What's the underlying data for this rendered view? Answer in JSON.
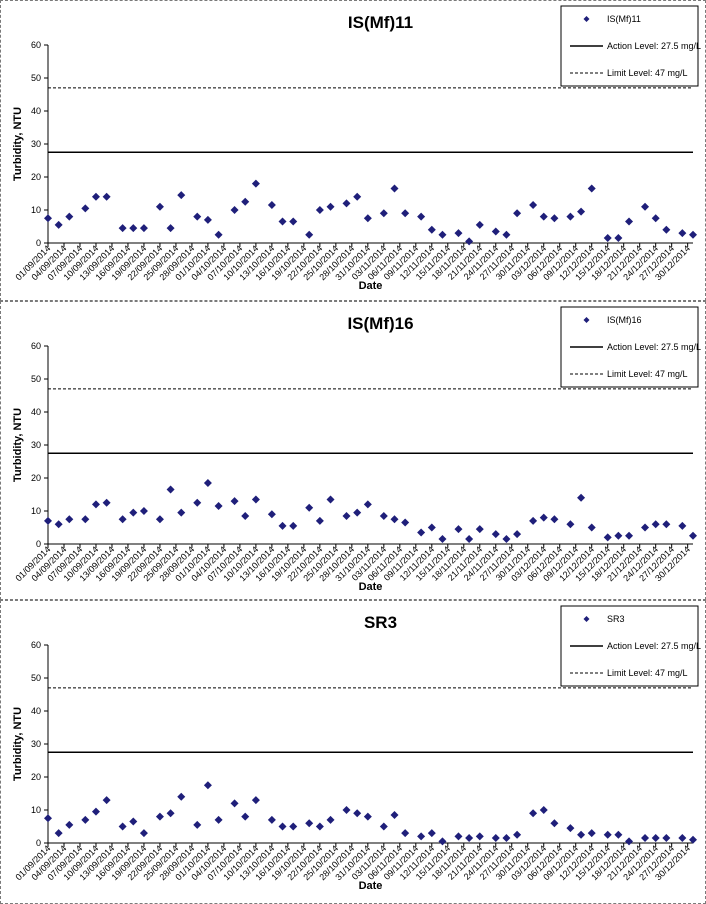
{
  "chart_data": [
    {
      "type": "scatter",
      "title": "IS(Mf)11",
      "xlabel": "Date",
      "ylabel": "Turbidity, NTU",
      "ylim": [
        0,
        60
      ],
      "yticks": [
        "0",
        "10",
        "20",
        "30",
        "40",
        "50",
        "60"
      ],
      "xlim": [
        "2014-09-01",
        "2014-12-31"
      ],
      "xticks": [
        "01/09/2014",
        "04/09/2014",
        "07/09/2014",
        "10/09/2014",
        "13/09/2014",
        "16/09/2014",
        "19/09/2014",
        "22/09/2014",
        "25/09/2014",
        "28/09/2014",
        "01/10/2014",
        "04/10/2014",
        "07/10/2014",
        "10/10/2014",
        "13/10/2014",
        "16/10/2014",
        "19/10/2014",
        "22/10/2014",
        "25/10/2014",
        "28/10/2014",
        "31/10/2014",
        "03/11/2014",
        "06/11/2014",
        "09/11/2014",
        "12/11/2014",
        "15/11/2014",
        "18/11/2014",
        "21/11/2014",
        "24/11/2014",
        "27/11/2014",
        "30/11/2014",
        "03/12/2014",
        "06/12/2014",
        "09/12/2014",
        "12/12/2014",
        "15/12/2014",
        "18/12/2014",
        "21/12/2014",
        "24/12/2014",
        "27/12/2014",
        "30/12/2014"
      ],
      "grid": false,
      "legend_position": "top-right",
      "series": [
        {
          "name": "IS(Mf)11",
          "marker": "diamond",
          "color": "#1f1f7a",
          "x": [
            "2014-09-01",
            "2014-09-03",
            "2014-09-05",
            "2014-09-08",
            "2014-09-10",
            "2014-09-12",
            "2014-09-15",
            "2014-09-17",
            "2014-09-19",
            "2014-09-22",
            "2014-09-24",
            "2014-09-26",
            "2014-09-29",
            "2014-10-01",
            "2014-10-03",
            "2014-10-06",
            "2014-10-08",
            "2014-10-10",
            "2014-10-13",
            "2014-10-15",
            "2014-10-17",
            "2014-10-20",
            "2014-10-22",
            "2014-10-24",
            "2014-10-27",
            "2014-10-29",
            "2014-10-31",
            "2014-11-03",
            "2014-11-05",
            "2014-11-07",
            "2014-11-10",
            "2014-11-12",
            "2014-11-14",
            "2014-11-17",
            "2014-11-19",
            "2014-11-21",
            "2014-11-24",
            "2014-11-26",
            "2014-11-28",
            "2014-12-01",
            "2014-12-03",
            "2014-12-05",
            "2014-12-08",
            "2014-12-10",
            "2014-12-12",
            "2014-12-15",
            "2014-12-17",
            "2014-12-19",
            "2014-12-22",
            "2014-12-24",
            "2014-12-26",
            "2014-12-29",
            "2014-12-31"
          ],
          "y": [
            7.5,
            5.5,
            8,
            10.5,
            14,
            14,
            4.5,
            4.5,
            4.5,
            11,
            4.5,
            14.5,
            8,
            7,
            2.5,
            10,
            12.5,
            18,
            11.5,
            6.5,
            6.5,
            2.5,
            10,
            11,
            12,
            14,
            7.5,
            9,
            16.5,
            9,
            8,
            4,
            2.5,
            3,
            0.5,
            5.5,
            3.5,
            2.5,
            9,
            11.5,
            8,
            7.5,
            8,
            9.5,
            16.5,
            1.5,
            1.5,
            6.5,
            11,
            7.5,
            4,
            3,
            2.5
          ]
        },
        {
          "name": "Action Level: 27.5 mg/L",
          "type": "hline",
          "y": 27.5,
          "style": "solid"
        },
        {
          "name": "Limit Level: 47 mg/L",
          "type": "hline",
          "y": 47,
          "style": "dashed"
        }
      ]
    },
    {
      "type": "scatter",
      "title": "IS(Mf)16",
      "xlabel": "Date",
      "ylabel": "Turbidity, NTU",
      "ylim": [
        0,
        60
      ],
      "yticks": [
        "0",
        "10",
        "20",
        "30",
        "40",
        "50",
        "60"
      ],
      "xlim": [
        "2014-09-01",
        "2014-12-31"
      ],
      "xticks": [
        "01/09/2014",
        "04/09/2014",
        "07/09/2014",
        "10/09/2014",
        "13/09/2014",
        "16/09/2014",
        "19/09/2014",
        "22/09/2014",
        "25/09/2014",
        "28/09/2014",
        "01/10/2014",
        "04/10/2014",
        "07/10/2014",
        "10/10/2014",
        "13/10/2014",
        "16/10/2014",
        "19/10/2014",
        "22/10/2014",
        "25/10/2014",
        "28/10/2014",
        "31/10/2014",
        "03/11/2014",
        "06/11/2014",
        "09/11/2014",
        "12/11/2014",
        "15/11/2014",
        "18/11/2014",
        "21/11/2014",
        "24/11/2014",
        "27/11/2014",
        "30/11/2014",
        "03/12/2014",
        "06/12/2014",
        "09/12/2014",
        "12/12/2014",
        "15/12/2014",
        "18/12/2014",
        "21/12/2014",
        "24/12/2014",
        "27/12/2014",
        "30/12/2014"
      ],
      "grid": false,
      "legend_position": "top-right",
      "series": [
        {
          "name": "IS(Mf)16",
          "marker": "diamond",
          "color": "#1f1f7a",
          "x": [
            "2014-09-01",
            "2014-09-03",
            "2014-09-05",
            "2014-09-08",
            "2014-09-10",
            "2014-09-12",
            "2014-09-15",
            "2014-09-17",
            "2014-09-19",
            "2014-09-22",
            "2014-09-24",
            "2014-09-26",
            "2014-09-29",
            "2014-10-01",
            "2014-10-03",
            "2014-10-06",
            "2014-10-08",
            "2014-10-10",
            "2014-10-13",
            "2014-10-15",
            "2014-10-17",
            "2014-10-20",
            "2014-10-22",
            "2014-10-24",
            "2014-10-27",
            "2014-10-29",
            "2014-10-31",
            "2014-11-03",
            "2014-11-05",
            "2014-11-07",
            "2014-11-10",
            "2014-11-12",
            "2014-11-14",
            "2014-11-17",
            "2014-11-19",
            "2014-11-21",
            "2014-11-24",
            "2014-11-26",
            "2014-11-28",
            "2014-12-01",
            "2014-12-03",
            "2014-12-05",
            "2014-12-08",
            "2014-12-10",
            "2014-12-12",
            "2014-12-15",
            "2014-12-17",
            "2014-12-19",
            "2014-12-22",
            "2014-12-24",
            "2014-12-26",
            "2014-12-29",
            "2014-12-31"
          ],
          "y": [
            7,
            6,
            7.5,
            7.5,
            12,
            12.5,
            7.5,
            9.5,
            10,
            7.5,
            16.5,
            9.5,
            12.5,
            18.5,
            11.5,
            13,
            8.5,
            13.5,
            9,
            5.5,
            5.5,
            11,
            7,
            13.5,
            8.5,
            9.5,
            12,
            8.5,
            7.5,
            6.5,
            3.5,
            5,
            1.5,
            4.5,
            1.5,
            4.5,
            3,
            1.5,
            3,
            7,
            8,
            7.5,
            6,
            14,
            5,
            2,
            2.5,
            2.5,
            5,
            6,
            6,
            5.5,
            2.5
          ]
        },
        {
          "name": "Action Level: 27.5 mg/L",
          "type": "hline",
          "y": 27.5,
          "style": "solid"
        },
        {
          "name": "Limit Level: 47 mg/L",
          "type": "hline",
          "y": 47,
          "style": "dashed"
        }
      ]
    },
    {
      "type": "scatter",
      "title": "SR3",
      "xlabel": "Date",
      "ylabel": "Turbidity, NTU",
      "ylim": [
        0,
        60
      ],
      "yticks": [
        "0",
        "10",
        "20",
        "30",
        "40",
        "50",
        "60"
      ],
      "xlim": [
        "2014-09-01",
        "2014-12-31"
      ],
      "xticks": [
        "01/09/2014",
        "04/09/2014",
        "07/09/2014",
        "10/09/2014",
        "13/09/2014",
        "16/09/2014",
        "19/09/2014",
        "22/09/2014",
        "25/09/2014",
        "28/09/2014",
        "01/10/2014",
        "04/10/2014",
        "07/10/2014",
        "10/10/2014",
        "13/10/2014",
        "16/10/2014",
        "19/10/2014",
        "22/10/2014",
        "25/10/2014",
        "28/10/2014",
        "31/10/2014",
        "03/11/2014",
        "06/11/2014",
        "09/11/2014",
        "12/11/2014",
        "15/11/2014",
        "18/11/2014",
        "21/11/2014",
        "24/11/2014",
        "27/11/2014",
        "30/11/2014",
        "03/12/2014",
        "06/12/2014",
        "09/12/2014",
        "12/12/2014",
        "15/12/2014",
        "18/12/2014",
        "21/12/2014",
        "24/12/2014",
        "27/12/2014",
        "30/12/2014"
      ],
      "grid": false,
      "legend_position": "top-right",
      "series": [
        {
          "name": "SR3",
          "marker": "diamond",
          "color": "#1f1f7a",
          "x": [
            "2014-09-01",
            "2014-09-03",
            "2014-09-05",
            "2014-09-08",
            "2014-09-10",
            "2014-09-12",
            "2014-09-15",
            "2014-09-17",
            "2014-09-19",
            "2014-09-22",
            "2014-09-24",
            "2014-09-26",
            "2014-09-29",
            "2014-10-01",
            "2014-10-03",
            "2014-10-06",
            "2014-10-08",
            "2014-10-10",
            "2014-10-13",
            "2014-10-15",
            "2014-10-17",
            "2014-10-20",
            "2014-10-22",
            "2014-10-24",
            "2014-10-27",
            "2014-10-29",
            "2014-10-31",
            "2014-11-03",
            "2014-11-05",
            "2014-11-07",
            "2014-11-10",
            "2014-11-12",
            "2014-11-14",
            "2014-11-17",
            "2014-11-19",
            "2014-11-21",
            "2014-11-24",
            "2014-11-26",
            "2014-11-28",
            "2014-12-01",
            "2014-12-03",
            "2014-12-05",
            "2014-12-08",
            "2014-12-10",
            "2014-12-12",
            "2014-12-15",
            "2014-12-17",
            "2014-12-19",
            "2014-12-22",
            "2014-12-24",
            "2014-12-26",
            "2014-12-29",
            "2014-12-31"
          ],
          "y": [
            7.5,
            3,
            5.5,
            7,
            9.5,
            13,
            5,
            6.5,
            3,
            8,
            9,
            14,
            5.5,
            17.5,
            7,
            12,
            8,
            13,
            7,
            5,
            5,
            6,
            5,
            7,
            10,
            9,
            8,
            5,
            8.5,
            3,
            2,
            3,
            0.5,
            2,
            1.5,
            2,
            1.5,
            1.5,
            2.5,
            9,
            10,
            6,
            4.5,
            2.5,
            3,
            2.5,
            2.5,
            0.5,
            1.5,
            1.5,
            1.5,
            1.5,
            1
          ]
        },
        {
          "name": "Action Level: 27.5 mg/L",
          "type": "hline",
          "y": 27.5,
          "style": "solid"
        },
        {
          "name": "Limit Level: 47 mg/L",
          "type": "hline",
          "y": 47,
          "style": "dashed"
        }
      ]
    }
  ]
}
